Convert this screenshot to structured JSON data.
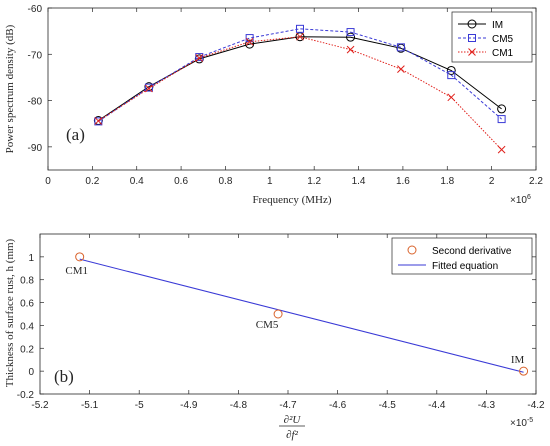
{
  "chart_data": [
    {
      "type": "line",
      "panel_label": "(a)",
      "xlabel": "Frequency (MHz)",
      "ylabel": "Power spectrum density (dB)",
      "x_exponent": "×10",
      "x_exponent_power": "6",
      "xlim": [
        0,
        2.2
      ],
      "ylim": [
        -95,
        -60
      ],
      "xticks": [
        "0",
        "0.2",
        "0.4",
        "0.6",
        "0.8",
        "1",
        "1.2",
        "1.4",
        "1.6",
        "1.8",
        "2",
        "2.2"
      ],
      "yticks": [
        "-60",
        "-70",
        "-80",
        "-90"
      ],
      "legend_position": "top-right",
      "x": [
        0.227,
        0.455,
        0.682,
        0.909,
        1.136,
        1.364,
        1.591,
        1.818,
        2.045
      ],
      "series": [
        {
          "name": "IM",
          "color": "#000000",
          "dash": "solid",
          "marker": "circle",
          "values": [
            -84.3,
            -77.0,
            -71.0,
            -67.8,
            -66.2,
            -66.3,
            -68.7,
            -73.5,
            -81.8
          ]
        },
        {
          "name": "CM5",
          "color": "#3a3ad6",
          "dash": "dashed",
          "marker": "square",
          "values": [
            -84.5,
            -77.2,
            -70.6,
            -66.5,
            -64.5,
            -65.2,
            -68.5,
            -74.5,
            -84.0
          ]
        },
        {
          "name": "CM1",
          "color": "#e0201b",
          "dash": "dotted",
          "marker": "x",
          "values": [
            -84.4,
            -77.4,
            -70.8,
            -67.3,
            -66.2,
            -69.0,
            -73.2,
            -79.3,
            -90.6
          ]
        }
      ]
    },
    {
      "type": "scatter",
      "panel_label": "(b)",
      "xlabel_numerator": "∂²U",
      "xlabel_denominator": "∂f²",
      "ylabel": "Thickness of surface rust, h (mm)",
      "x_exponent": "×10",
      "x_exponent_power": "-5",
      "xlim": [
        -5.2,
        -4.2
      ],
      "ylim": [
        -0.2,
        1.2
      ],
      "xticks": [
        "-5.2",
        "-5.1",
        "-5",
        "-4.9",
        "-4.8",
        "-4.7",
        "-4.6",
        "-4.5",
        "-4.4",
        "-4.3",
        "-4.2"
      ],
      "yticks": [
        "1",
        "0.8",
        "0.6",
        "0.4",
        "0.2",
        "0",
        "-0.2"
      ],
      "legend_position": "top-right",
      "points": [
        {
          "label": "CM1",
          "x": -5.12,
          "y": 1.0
        },
        {
          "label": "CM5",
          "x": -4.72,
          "y": 0.5
        },
        {
          "label": "IM",
          "x": -4.225,
          "y": 0.0
        }
      ],
      "fit": {
        "x": [
          -5.12,
          -4.225
        ],
        "y": [
          0.98,
          -0.01
        ]
      },
      "series": [
        {
          "name": "Second derivative",
          "color": "#d9622b",
          "marker": "circle"
        },
        {
          "name": "Fitted equation",
          "color": "#3a3ad6",
          "marker": "line"
        }
      ]
    }
  ]
}
